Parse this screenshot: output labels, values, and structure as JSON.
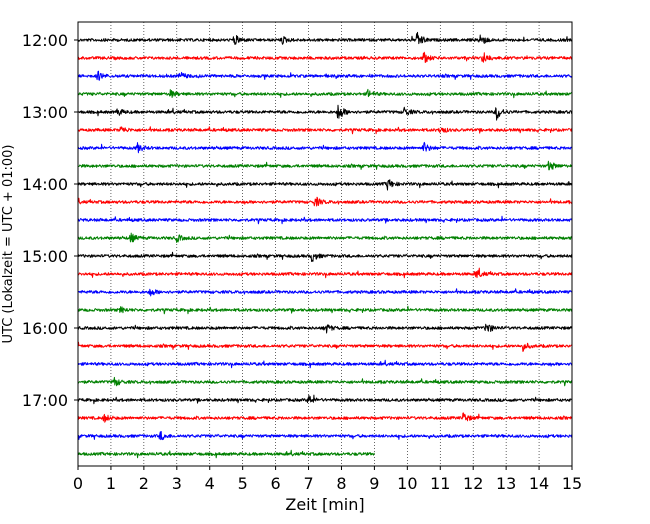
{
  "chart_data": {
    "type": "line",
    "title": "",
    "xlabel": "Zeit  [min]",
    "ylabel": "UTC (Lokalzeit = UTC + 01:00)",
    "xlim": [
      0,
      15
    ],
    "xticks": [
      0,
      1,
      2,
      3,
      4,
      5,
      6,
      7,
      8,
      9,
      10,
      11,
      12,
      13,
      14,
      15
    ],
    "ytick_labels": [
      "12:00",
      "13:00",
      "14:00",
      "15:00",
      "16:00",
      "17:00"
    ],
    "ytick_rows": [
      0,
      4,
      8,
      12,
      16,
      20
    ],
    "grid": {
      "x": "dotted",
      "y": false
    },
    "row_interval_min": 15,
    "color_cycle": [
      "#000000",
      "#ff0000",
      "#0000ff",
      "#008000"
    ],
    "rows": [
      {
        "start": "12:00",
        "color": "#000000",
        "end_min": 15,
        "events": [
          {
            "t": 4.75,
            "a": 0.6
          },
          {
            "t": 6.2,
            "a": 0.4
          },
          {
            "t": 10.3,
            "a": 0.9
          },
          {
            "t": 12.2,
            "a": 0.8
          }
        ]
      },
      {
        "start": "12:15",
        "color": "#ff0000",
        "end_min": 15,
        "events": [
          {
            "t": 10.5,
            "a": 0.6
          },
          {
            "t": 12.3,
            "a": 0.7
          }
        ]
      },
      {
        "start": "12:30",
        "color": "#0000ff",
        "end_min": 15,
        "events": [
          {
            "t": 0.6,
            "a": 0.5
          },
          {
            "t": 3.1,
            "a": 0.4
          }
        ]
      },
      {
        "start": "12:45",
        "color": "#008000",
        "end_min": 15,
        "events": [
          {
            "t": 2.8,
            "a": 0.4
          },
          {
            "t": 8.8,
            "a": 0.4
          }
        ]
      },
      {
        "start": "13:00",
        "color": "#000000",
        "end_min": 15,
        "events": [
          {
            "t": 1.2,
            "a": 0.4
          },
          {
            "t": 7.9,
            "a": 1.0
          },
          {
            "t": 9.9,
            "a": 0.5
          },
          {
            "t": 12.7,
            "a": 0.9
          }
        ]
      },
      {
        "start": "13:15",
        "color": "#ff0000",
        "end_min": 15,
        "events": [
          {
            "t": 1.3,
            "a": 0.4
          },
          {
            "t": 11.0,
            "a": 0.4
          }
        ]
      },
      {
        "start": "13:30",
        "color": "#0000ff",
        "end_min": 15,
        "events": [
          {
            "t": 1.8,
            "a": 0.5
          },
          {
            "t": 10.5,
            "a": 0.6
          }
        ]
      },
      {
        "start": "13:45",
        "color": "#008000",
        "end_min": 15,
        "events": [
          {
            "t": 14.3,
            "a": 0.6
          }
        ]
      },
      {
        "start": "14:00",
        "color": "#000000",
        "end_min": 15,
        "events": [
          {
            "t": 9.4,
            "a": 0.6
          }
        ]
      },
      {
        "start": "14:15",
        "color": "#ff0000",
        "end_min": 15,
        "events": [
          {
            "t": 7.2,
            "a": 0.6
          }
        ]
      },
      {
        "start": "14:30",
        "color": "#0000ff",
        "end_min": 15,
        "events": []
      },
      {
        "start": "14:45",
        "color": "#008000",
        "end_min": 15,
        "events": [
          {
            "t": 1.6,
            "a": 0.5
          },
          {
            "t": 3.0,
            "a": 0.4
          }
        ]
      },
      {
        "start": "15:00",
        "color": "#000000",
        "end_min": 15,
        "events": [
          {
            "t": 7.1,
            "a": 0.6
          }
        ]
      },
      {
        "start": "15:15",
        "color": "#ff0000",
        "end_min": 15,
        "events": [
          {
            "t": 12.1,
            "a": 0.5
          }
        ]
      },
      {
        "start": "15:30",
        "color": "#0000ff",
        "end_min": 15,
        "events": [
          {
            "t": 2.2,
            "a": 0.4
          }
        ]
      },
      {
        "start": "15:45",
        "color": "#008000",
        "end_min": 15,
        "events": [
          {
            "t": 1.3,
            "a": 0.3
          }
        ]
      },
      {
        "start": "16:00",
        "color": "#000000",
        "end_min": 15,
        "events": [
          {
            "t": 7.5,
            "a": 0.6
          },
          {
            "t": 12.4,
            "a": 0.7
          }
        ]
      },
      {
        "start": "16:15",
        "color": "#ff0000",
        "end_min": 15,
        "events": [
          {
            "t": 13.5,
            "a": 0.5
          }
        ]
      },
      {
        "start": "16:30",
        "color": "#0000ff",
        "end_min": 15,
        "events": []
      },
      {
        "start": "16:45",
        "color": "#008000",
        "end_min": 15,
        "events": [
          {
            "t": 1.1,
            "a": 0.5
          }
        ]
      },
      {
        "start": "17:00",
        "color": "#000000",
        "end_min": 15,
        "events": [
          {
            "t": 7.0,
            "a": 0.5
          }
        ]
      },
      {
        "start": "17:15",
        "color": "#ff0000",
        "end_min": 15,
        "events": [
          {
            "t": 0.8,
            "a": 0.4
          },
          {
            "t": 11.7,
            "a": 0.6
          }
        ]
      },
      {
        "start": "17:30",
        "color": "#0000ff",
        "end_min": 15,
        "events": [
          {
            "t": 2.5,
            "a": 0.5
          }
        ]
      },
      {
        "start": "17:45",
        "color": "#008000",
        "end_min": 9.0,
        "events": []
      }
    ]
  }
}
